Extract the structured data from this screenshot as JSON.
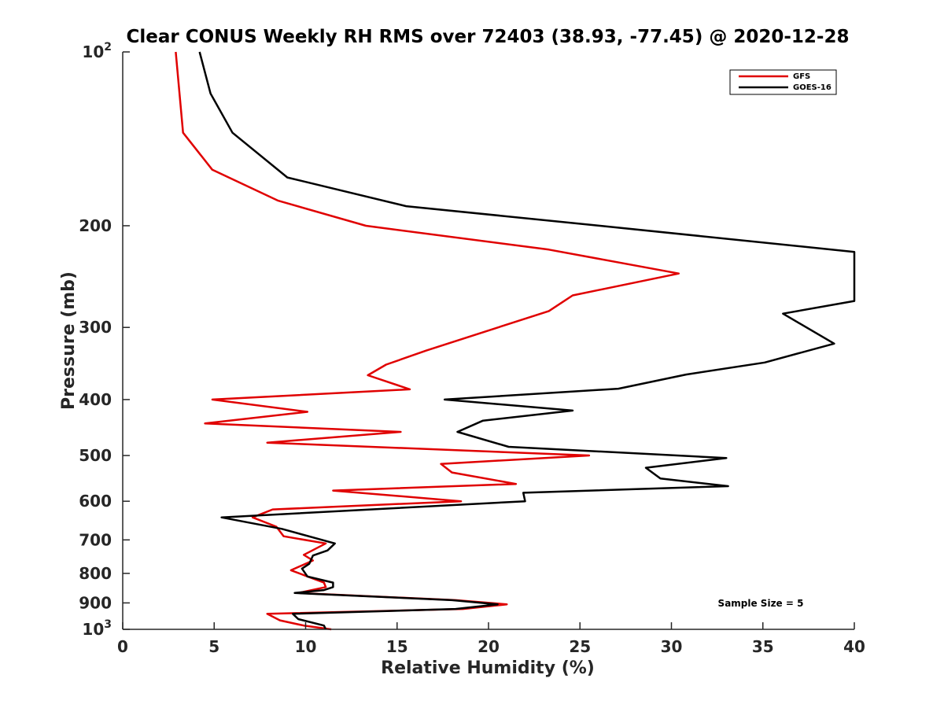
{
  "chart_data": {
    "type": "line",
    "title": "Clear CONUS Weekly RH RMS over 72403 (38.93, -77.45) @ 2020-12-28",
    "xlabel": "Relative Humidity (%)",
    "ylabel": "Pressure (mb)",
    "xlim": [
      0,
      40
    ],
    "ylim": [
      100,
      1000
    ],
    "y_scale": "log",
    "y_reversed": true,
    "x_ticks": [
      0,
      5,
      10,
      15,
      20,
      25,
      30,
      35,
      40
    ],
    "x_tick_labels": [
      "0",
      "5",
      "10",
      "15",
      "20",
      "25",
      "30",
      "35",
      "40"
    ],
    "y_ticks": [
      100,
      200,
      300,
      400,
      500,
      600,
      700,
      800,
      900,
      1000
    ],
    "y_tick_labels": [
      {
        "base": "10",
        "exp": "2"
      },
      {
        "text": "200"
      },
      {
        "text": "300"
      },
      {
        "text": "400"
      },
      {
        "text": "500"
      },
      {
        "text": "600"
      },
      {
        "text": "700"
      },
      {
        "text": "800"
      },
      {
        "text": "900"
      },
      {
        "base": "10",
        "exp": "3"
      }
    ],
    "grid": false,
    "legend_position": "top-right",
    "annotation": "Sample Size = 5",
    "series": [
      {
        "name": "GFS",
        "color": "#e00000",
        "points": [
          [
            2.9,
            100
          ],
          [
            3.3,
            138
          ],
          [
            4.9,
            160
          ],
          [
            8.5,
            181
          ],
          [
            13.3,
            200
          ],
          [
            23.3,
            220
          ],
          [
            30.4,
            242
          ],
          [
            24.6,
            264
          ],
          [
            23.3,
            281
          ],
          [
            16.6,
            329
          ],
          [
            14.4,
            348
          ],
          [
            13.4,
            363
          ],
          [
            15.7,
            384
          ],
          [
            4.9,
            400
          ],
          [
            10.1,
            420
          ],
          [
            4.5,
            440
          ],
          [
            15.2,
            455
          ],
          [
            7.9,
            475
          ],
          [
            25.5,
            500
          ],
          [
            17.4,
            517
          ],
          [
            18.0,
            535
          ],
          [
            21.5,
            560
          ],
          [
            11.5,
            575
          ],
          [
            18.5,
            600
          ],
          [
            8.2,
            620
          ],
          [
            7.1,
            640
          ],
          [
            8.4,
            664
          ],
          [
            8.8,
            690
          ],
          [
            11.1,
            710
          ],
          [
            9.9,
            743
          ],
          [
            10.4,
            760
          ],
          [
            9.2,
            790
          ],
          [
            10.1,
            810
          ],
          [
            11.0,
            830
          ],
          [
            11.1,
            845
          ],
          [
            9.6,
            865
          ],
          [
            18.2,
            890
          ],
          [
            21.0,
            905
          ],
          [
            18.6,
            922
          ],
          [
            7.9,
            940
          ],
          [
            8.6,
            965
          ],
          [
            9.9,
            985
          ],
          [
            11.4,
            1000
          ]
        ]
      },
      {
        "name": "GOES-16",
        "color": "#000000",
        "points": [
          [
            4.2,
            100
          ],
          [
            4.8,
            118
          ],
          [
            6.0,
            138
          ],
          [
            9.0,
            165
          ],
          [
            15.5,
            185
          ],
          [
            26.1,
            200
          ],
          [
            40.0,
            222
          ],
          [
            40.0,
            270
          ],
          [
            36.1,
            284
          ],
          [
            38.9,
            320
          ],
          [
            35.1,
            345
          ],
          [
            30.8,
            362
          ],
          [
            27.1,
            383
          ],
          [
            17.6,
            400
          ],
          [
            24.6,
            418
          ],
          [
            19.7,
            435
          ],
          [
            18.3,
            455
          ],
          [
            21.1,
            483
          ],
          [
            33.0,
            505
          ],
          [
            28.6,
            525
          ],
          [
            29.4,
            548
          ],
          [
            33.1,
            565
          ],
          [
            21.9,
            580
          ],
          [
            22.0,
            600
          ],
          [
            5.4,
            640
          ],
          [
            8.7,
            670
          ],
          [
            11.6,
            710
          ],
          [
            11.2,
            730
          ],
          [
            10.4,
            745
          ],
          [
            10.2,
            770
          ],
          [
            9.8,
            785
          ],
          [
            10.1,
            810
          ],
          [
            11.5,
            830
          ],
          [
            11.5,
            845
          ],
          [
            11.0,
            855
          ],
          [
            9.4,
            865
          ],
          [
            18.0,
            890
          ],
          [
            20.5,
            905
          ],
          [
            18.2,
            922
          ],
          [
            9.3,
            940
          ],
          [
            9.6,
            960
          ],
          [
            11.0,
            985
          ],
          [
            11.1,
            1000
          ]
        ]
      }
    ]
  }
}
